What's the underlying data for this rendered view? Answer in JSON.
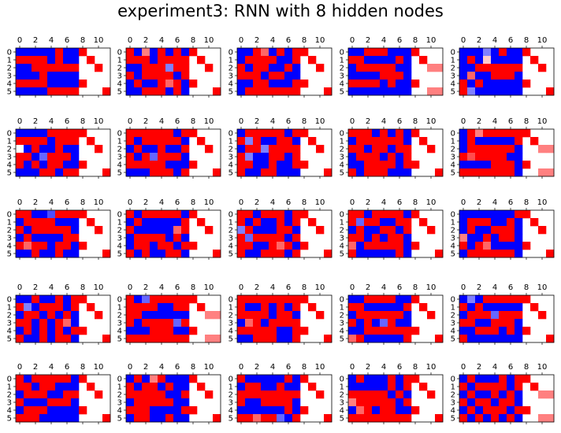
{
  "title": "experiment3: RNN with 8 hidden nodes",
  "chart_data": {
    "type": "heatmap",
    "title": "experiment3: RNN with 8 hidden nodes",
    "layout": "5x5 grid of heatmaps",
    "rows": 6,
    "cols": 12,
    "x_tick_labels": [
      "0",
      "2",
      "4",
      "6",
      "8",
      "10"
    ],
    "y_tick_labels": [
      "0",
      "1",
      "2",
      "3",
      "4",
      "5"
    ],
    "colormap": {
      "low": "#0000ff",
      "mid": "#ffffff",
      "high": "#ff0000"
    },
    "value_key": "-1 = blue, 1 = red, 0 = white, 'n' = blank",
    "panels": [
      [
        "-1,-1,-1,-1,-1,1,-1,-1,1,n,n,n",
        "1,1,1,1,-1,1,-1,-1,n,1,n,n",
        "-1,-1,1,1,1,1,1,1,n,n,1,n",
        "-1,-1,-1,1,-1,-1,-1,-1,n,n,n,n",
        "1,1,1,1,-1,-1,-1,-1,1,n,n,n",
        "-1,-1,-1,-1,1,1,1,1,n,n,n,1"
      ],
      [
        "1,-1,0.5,-1,1,-1,1,-1,1,n,n,n",
        "1,1,1,-1,1,1,1,1,n,1,n,n",
        "-1,-1,1,1,1,-0.5,1,1,n,n,1,n",
        "1,-1,1,1,1,1,-1,1,n,n,n,n",
        "-1,1,-1,-1,1,0.6,1,-1,1,n,n,n",
        "-1,-1,1,1,1,-1,1,-1,n,n,n,1"
      ],
      [
        "-1,-1,1,0.6,-1,1,-1,1,1,n,n,n",
        "-1,1,1,1,1,-1,-1,1,n,1,n,n",
        "1,-1,1,1,-1,-1,1,-1,n,n,1,n",
        "1,1,1,-1,1,1,-1,-1,n,n,n,n",
        "-1,-1,1,1,-1,-1,-1,1,1,n,n,n",
        "-1,1,1,1,1,1,1,1,n,n,n,1"
      ],
      [
        "-1,-1,1,1,1,-1,-1,-1,1,n,n,n",
        "1,1,-1,-1,-1,-1,1,-1,n,1,n,n",
        "-1,1,1,1,1,1,-1,-1,n,n,0.5,0.5",
        "-1,-1,-1,-1,1,1,1,-1,n,n,n,n",
        "1,1,1,1,-1,1,-1,-1,1,n,n,n",
        "-1,-1,-1,-1,-1,-1,-1,-1,n,n,0.5,0.5"
      ],
      [
        "-1,-1,-1,-0.5,-1,1,-1,-1,1,n,n,n",
        "-1,1,-1,0.2,-1,-1,-1,-1,n,1,n,n",
        "-1,-1,1,1,1,1,1,1,n,n,1,n",
        "-1,0.6,-1,-1,1,1,1,-1,n,n,n,n",
        "1,-1,1,-1,-1,-1,-1,-1,1,n,n,n",
        "1,-0.5,-1,-1,-1,-1,-1,-1,n,n,n,1"
      ],
      [
        "-1,-1,-1,-1,1,1,1,1,1,n,n,n",
        "1,1,1,1,-1,1,1,1,n,1,n,n",
        "0,-1,1,-1,-1,1,-1,-1,n,n,1,n",
        "1,1,-1,-0.6,1,1,1,-1,n,n,n,n",
        "1,-1,1,-1,1,1,-1,-1,1,n,n,n",
        "-1,-1,-1,1,1,-1,1,1,n,n,n,1"
      ],
      [
        "1,1,1,1,1,1,-1,1,1,n,n,n",
        "1,-1,1,1,1,1,1,-1,n,1,n,n",
        "-1,1,-1,-1,1,-1,-1,1,n,n,1,n",
        "1,-1,1,-0.6,1,1,1,-1,n,n,n,n",
        "1,1,1,1,1,-1,-1,-1,1,n,n,n",
        "-1,-1,-1,1,1,1,-1,1,n,n,n,1"
      ],
      [
        "-1,1,1,1,1,1,-1,1,1,n,n,n",
        "1,-0.5,1,-1,-1,1,1,-1,n,1,n,n",
        "-1,1,1,-0.5,1,1,1,1,n,n,1,n",
        "1,-0.5,-1,-1,1,1,-1,1,n,n,n,n",
        "1,1,-1,-1,1,-1,-1,1,1,n,n,n",
        "1,-1,-1,1,1,-1,-1,-1,n,n,n,1"
      ],
      [
        "1,1,1,-1,1,-1,1,-1,1,n,n,n",
        "-1,1,1,1,1,1,1,-1,n,1,n,n",
        "1,1,-1,1,1,-1,1,1,n,n,1,n",
        "-1,1,1,1,-1,1,-1,1,n,n,n,n",
        "-1,-1,1,1,1,1,-1,1,1,n,n,n",
        "1,-1,1,1,1,-1,-1,-1,n,n,n,1"
      ],
      [
        "-1,1,0.5,1,1,1,1,1,1,n,n,n",
        "-1,1,-1,-1,-1,-1,-1,1,n,1,n,n",
        "-1,1,1,1,1,1,1,-1,n,n,0.5,0.5",
        "1,0.7,1,1,1,1,-1,-1,n,n,n,n",
        "-1,-1,-1,-1,1,1,1,-1,1,n,n,n",
        "1,1,1,1,1,1,1,-1,n,n,0.5,0.5"
      ],
      [
        "1,1,-1,-1,-0.7,1,1,1,1,n,n,n",
        "-1,1,1,1,1,-1,-1,-1,n,1,n,n",
        "1,-1,1,1,1,1,1,-1,n,n,1,n",
        "-1,1,-1,-1,-1,-1,1,1,n,n,n,n",
        "1,0.6,1,1,-1,1,1,-1,1,n,n,n",
        "-1,-1,1,-1,-1,1,-1,-1,n,n,n,1"
      ],
      [
        "1,-1,1,1,1,1,1,-1,1,n,n,n",
        "-1,1,-1,-1,-1,-1,-1,1,n,1,n,n",
        "1,-1,-1,-1,-1,-1,0.6,1,n,n,1,n",
        "-1,1,1,1,1,-1,1,-1,n,n,n,n",
        "-1,1,1,-1,1,1,-1,1,1,n,n,n",
        "1,-1,1,-1,-1,1,1,-1,n,n,n,1"
      ],
      [
        "1,1,-1,1,1,1,-1,1,1,n,n,n",
        "1,-1,1,-1,-1,1,-1,1,n,1,n,n",
        "-0.5,1,-1,-1,-1,1,1,-1,n,n,1,n",
        "1,-0.6,1,1,1,1,-1,1,n,n,n,n",
        "1,1,-1,-1,1,0.6,1,-1,1,n,n,n",
        "1,-1,-1,1,1,1,-1,1,n,n,n,1"
      ],
      [
        "1,1,-1,1,1,1,1,-1,1,n,n,n",
        "1,-0.6,1,1,-1,-1,1,1,n,1,n,n",
        "-1,1,-1,-1,1,1,-1,1,n,n,1,n",
        "1,1,-1,1,-1,1,1,-1,n,n,n,n",
        "0.6,-1,1,1,1,1,1,-1,1,n,n,n",
        "1,-1,-1,-1,-1,-1,1,-1,n,n,n,1"
      ],
      [
        "-1,-1,-1,-1,-1,-1,-1,1,1,n,n,n",
        "-1,1,1,1,-1,-1,1,-1,n,1,n,n",
        "-1,1,-1,-1,1,1,1,-1,n,n,1,n",
        "0.5,-1,-1,1,-1,1,1,-1,n,n,n,n",
        "1,-1,1,0.6,-1,-1,-1,-1,1,n,n,n",
        "-1,1,1,1,1,1,1,-1,n,n,n,1"
      ],
      [
        "-1,-1,1,-1,-1,1,-1,1,1,n,n,n",
        "1,-0.5,-1,1,1,1,-1,1,n,1,n,n",
        "-1,1,1,-1,1,-1,1,-1,n,n,1,n",
        "1,1,-1,1,-1,1,0.6,-1,n,n,n,n",
        "-1,1,-1,1,-1,1,-1,1,1,n,n,n",
        "1,-1,-1,1,-1,1,1,-1,n,n,n,1"
      ],
      [
        "1,-1,-0.6,1,1,1,1,1,1,n,n,n",
        "1,1,1,1,-1,-1,1,1,n,1,n,n",
        "1,1,-1,-1,-1,-1,-1,-1,n,n,0.5,0.5",
        "1,-1,1,1,1,1,-0.6,1,n,n,n,n",
        "-1,-1,-1,1,1,1,-1,-1,1,n,n,n",
        "1,1,1,1,1,1,1,1,n,n,0.5,0.5"
      ],
      [
        "1,1,1,1,1,1,1,1,1,n,n,n",
        "1,-1,-1,1,-1,1,-1,1,n,1,n,n",
        "1,1,1,1,-1,1,1,-1,n,n,1,n",
        "-1,0.6,1,-1,1,1,1,1,n,n,n,n",
        "1,1,1,1,1,-1,-1,1,1,n,n,n",
        "-1,-1,1,1,1,-1,-1,1,n,n,n,1"
      ],
      [
        "-1,-1,1,1,1,1,-1,-1,1,n,n,n",
        "1,1,-1,-1,-1,-1,-1,1,n,1,n,n",
        "-1,1,1,1,1,1,1,-1,n,n,1,n",
        "1,-1,1,-1,-0.6,1,-1,-1,n,n,n,n",
        "-1,-1,1,1,1,1,1,1,1,n,n,n",
        "0.6,1,-1,-1,-1,-1,-1,1,n,n,n,1"
      ],
      [
        "-1,-0.5,-1,1,1,1,1,1,1,n,n,n",
        "1,-1,1,-1,-1,-1,-1,-1,n,1,n,n",
        "-1,1,1,1,-0.6,1,1,1,n,n,1,n",
        "1,1,-1,-1,1,1,1,-1,n,n,n,n",
        "-1,-1,1,1,1,-1,1,-1,1,n,n,n",
        "1,-1,-1,-1,-1,-1,-1,-1,n,n,n,1"
      ],
      [
        "1,-1,1,1,1,1,1,-1,1,n,n,n",
        "1,1,-1,1,1,-1,-1,-1,n,1,n,n",
        "-1,1,1,1,-1,-1,1,1,n,n,1,n",
        "1,-1,-1,-1,1,1,1,-1,n,n,n,n",
        "-1,1,1,1,-1,-1,-1,-1,1,n,n,n",
        "1,1,1,-1,-1,-1,-1,-1,n,n,n,1"
      ],
      [
        "-1,1,-1,0.5,1,-1,-1,-1,1,n,n,n",
        "1,-1,1,1,-1,1,-1,-1,n,1,n,n",
        "1,1,1,1,1,-1,-1,1,n,n,1,n",
        "-1,1,1,1,1,1,-1,-1,n,n,n,n",
        "1,1,1,-1,-1,-1,-1,1,1,n,n,n",
        "-1,1,1,-1,-1,1,-1,-1,n,n,n,1"
      ],
      [
        "1,-1,-1,-1,-1,-1,1,-1,1,n,n,n",
        "-1,1,1,-1,-1,1,-1,-1,n,1,n,n",
        "1,1,1,1,1,1,1,1,n,n,1,n",
        "1,-1,-1,1,1,1,1,-1,n,n,n,n",
        "-1,-1,-1,-1,-1,-1,1,-1,1,n,n,n",
        "1,1,0.6,1,1,-0.6,-1,1,n,n,n,1"
      ],
      [
        "-1,1,-1,-1,-1,1,-1,1,1,n,n,n",
        "-1,-1,-1,-1,-1,1,-1,1,n,1,n,n",
        "1,1,1,1,1,-1,1,-1,n,n,1,n",
        "0.5,1,1,1,1,1,-1,1,n,n,n,n",
        "-1,0.6,1,-1,1,1,-1,-1,1,n,n,n",
        "1,1,1,1,1,1,1,1,n,n,n,1"
      ],
      [
        "-1,1,-1,-1,-1,1,-1,1,1,n,n,n",
        "1,-1,1,1,1,1,-1,1,n,1,n,n",
        "-1,1,-1,-1,1,-1,1,-1,n,n,0.5,0.5",
        "1,-1,1,1,-1,1,1,-1,n,n,n,n",
        "-1,1,-1,1,1,1,-1,1,1,n,n,n",
        "1,-1,1,-1,1,-1,1,-1,n,n,0.5,0.5"
      ]
    ]
  }
}
